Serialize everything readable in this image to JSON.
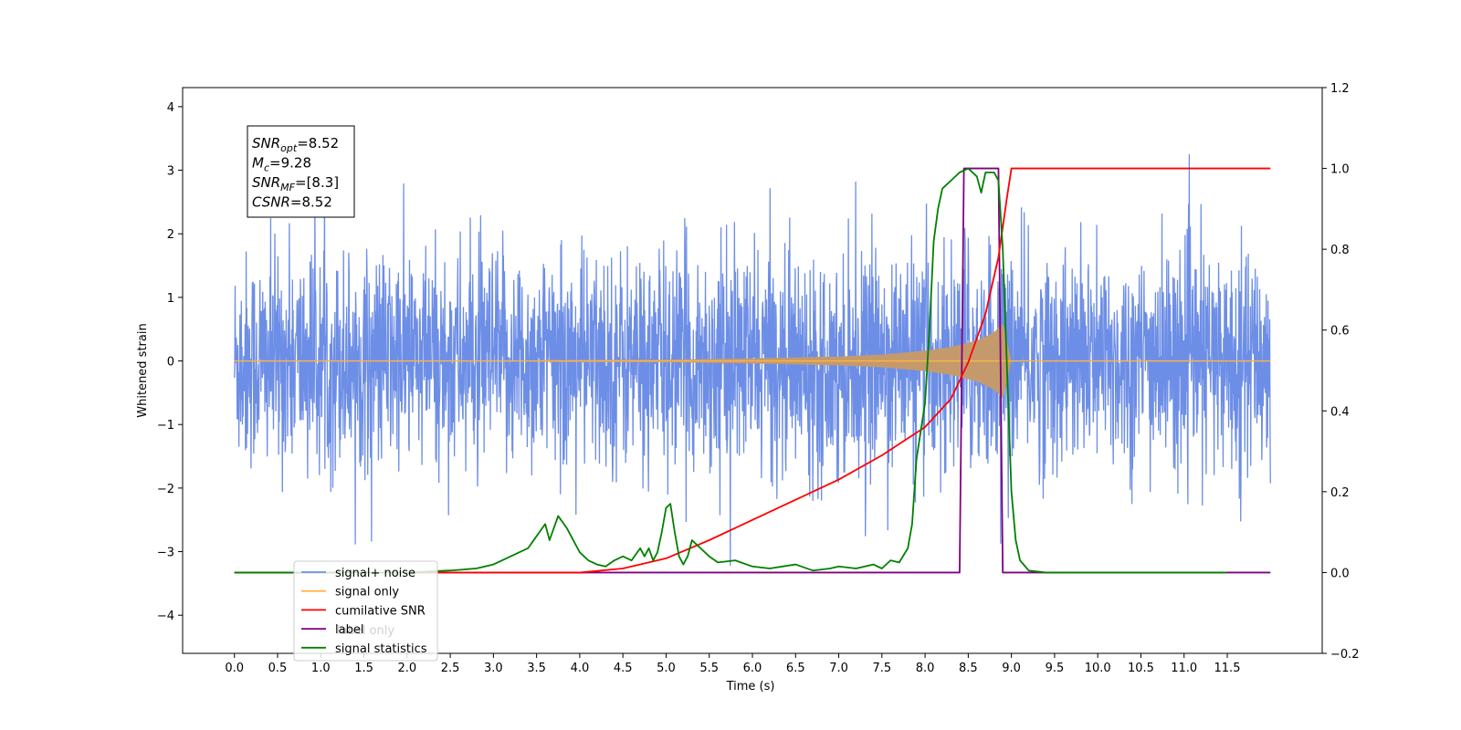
{
  "chart_data": {
    "type": "line",
    "xlabel": "Time (s)",
    "ylabel": "Whitened strain",
    "xlim": [
      -0.6,
      12.6
    ],
    "ylim": [
      -4.6,
      4.3
    ],
    "y2lim": [
      -0.2,
      1.2
    ],
    "x_ticks": [
      "0.0",
      "0.5",
      "1.0",
      "1.5",
      "2.0",
      "2.5",
      "3.0",
      "3.5",
      "4.0",
      "4.5",
      "5.0",
      "5.5",
      "6.0",
      "6.5",
      "7.0",
      "7.5",
      "8.0",
      "8.5",
      "9.0",
      "9.5",
      "10.0",
      "10.5",
      "11.0",
      "11.5"
    ],
    "y_ticks": [
      "−4",
      "−3",
      "−2",
      "−1",
      "0",
      "1",
      "2",
      "3",
      "4"
    ],
    "y2_ticks": [
      "−0.2",
      "0.0",
      "0.2",
      "0.4",
      "0.6",
      "0.8",
      "1.0",
      "1.2"
    ],
    "grid": false,
    "legend_position": "lower-left",
    "colors": {
      "signal_noise": "#6d8ee6",
      "signal_only": "#ffb347",
      "signal_fill": "#c49a6c",
      "cumulative_snr": "#ff0000",
      "label": "#800080",
      "signal_statistics": "#008000"
    },
    "legend": [
      {
        "name": "signal+ noise",
        "color": "#6d8ee6"
      },
      {
        "name": "signal only",
        "color": "#ffb347"
      },
      {
        "name": "cumilative SNR",
        "color": "#ff0000"
      },
      {
        "name": "label",
        "color": "#800080"
      },
      {
        "name": "signal statistics",
        "color": "#008000"
      }
    ],
    "hidden_text": "label only",
    "annotation": [
      {
        "sym": "SNR",
        "sub": "opt",
        "value": "=8.52"
      },
      {
        "sym": "M",
        "sub": "c",
        "value": "=9.28"
      },
      {
        "sym": "SNR",
        "sub": "MF",
        "value": "=[8.3]"
      },
      {
        "sym": "CSNR",
        "sub": "",
        "value": "=8.52"
      }
    ],
    "series": [
      {
        "name": "signal+ noise",
        "axis": "left",
        "description": "whitened noise + signal, approx. amplitude ±2.5 with spikes up to ±4",
        "x_range": [
          0,
          12
        ]
      },
      {
        "name": "signal only",
        "axis": "left",
        "envelope": {
          "x": [
            0,
            5,
            6,
            7,
            7.5,
            8,
            8.3,
            8.6,
            8.8,
            8.9,
            9.0,
            12
          ],
          "amp": [
            0.0,
            0.02,
            0.04,
            0.07,
            0.1,
            0.16,
            0.22,
            0.32,
            0.45,
            0.6,
            0.0,
            0.0
          ]
        }
      },
      {
        "name": "cumilative SNR",
        "axis": "right",
        "x": [
          0,
          4,
          4.5,
          5,
          5.5,
          6,
          6.5,
          7,
          7.5,
          8,
          8.3,
          8.5,
          8.7,
          8.85,
          8.95,
          9.0,
          12
        ],
        "y": [
          0,
          0,
          0.01,
          0.035,
          0.08,
          0.13,
          0.18,
          0.23,
          0.29,
          0.36,
          0.43,
          0.52,
          0.64,
          0.78,
          0.93,
          1.0,
          1.0
        ]
      },
      {
        "name": "label",
        "axis": "right",
        "x": [
          0,
          8.4,
          8.45,
          8.85,
          8.9,
          12
        ],
        "y": [
          0,
          0,
          1,
          1,
          0,
          0
        ]
      },
      {
        "name": "signal statistics",
        "axis": "right",
        "x": [
          0,
          1,
          2,
          2.5,
          2.8,
          3.0,
          3.2,
          3.4,
          3.5,
          3.6,
          3.65,
          3.75,
          3.85,
          3.95,
          4.0,
          4.1,
          4.2,
          4.3,
          4.4,
          4.5,
          4.6,
          4.7,
          4.75,
          4.8,
          4.85,
          4.9,
          4.95,
          5.0,
          5.05,
          5.1,
          5.15,
          5.2,
          5.25,
          5.3,
          5.4,
          5.5,
          5.6,
          5.8,
          6.0,
          6.2,
          6.5,
          6.7,
          6.9,
          7.0,
          7.2,
          7.4,
          7.5,
          7.6,
          7.7,
          7.8,
          7.85,
          7.9,
          8.0,
          8.05,
          8.1,
          8.15,
          8.2,
          8.3,
          8.4,
          8.5,
          8.6,
          8.65,
          8.7,
          8.8,
          8.85,
          8.9,
          8.95,
          9.0,
          9.05,
          9.1,
          9.2,
          9.4,
          10,
          11.5
        ],
        "y": [
          0,
          0,
          0,
          0.005,
          0.01,
          0.02,
          0.04,
          0.06,
          0.09,
          0.12,
          0.08,
          0.14,
          0.11,
          0.07,
          0.05,
          0.03,
          0.02,
          0.015,
          0.03,
          0.04,
          0.03,
          0.06,
          0.04,
          0.06,
          0.03,
          0.05,
          0.1,
          0.16,
          0.17,
          0.1,
          0.04,
          0.02,
          0.04,
          0.08,
          0.06,
          0.04,
          0.025,
          0.03,
          0.015,
          0.01,
          0.02,
          0.005,
          0.01,
          0.015,
          0.01,
          0.02,
          0.01,
          0.03,
          0.025,
          0.06,
          0.12,
          0.28,
          0.42,
          0.6,
          0.82,
          0.9,
          0.95,
          0.97,
          0.99,
          1.0,
          0.98,
          0.94,
          0.99,
          0.99,
          0.97,
          0.8,
          0.5,
          0.2,
          0.08,
          0.03,
          0.005,
          0.0,
          0.0,
          0.0
        ]
      }
    ]
  }
}
